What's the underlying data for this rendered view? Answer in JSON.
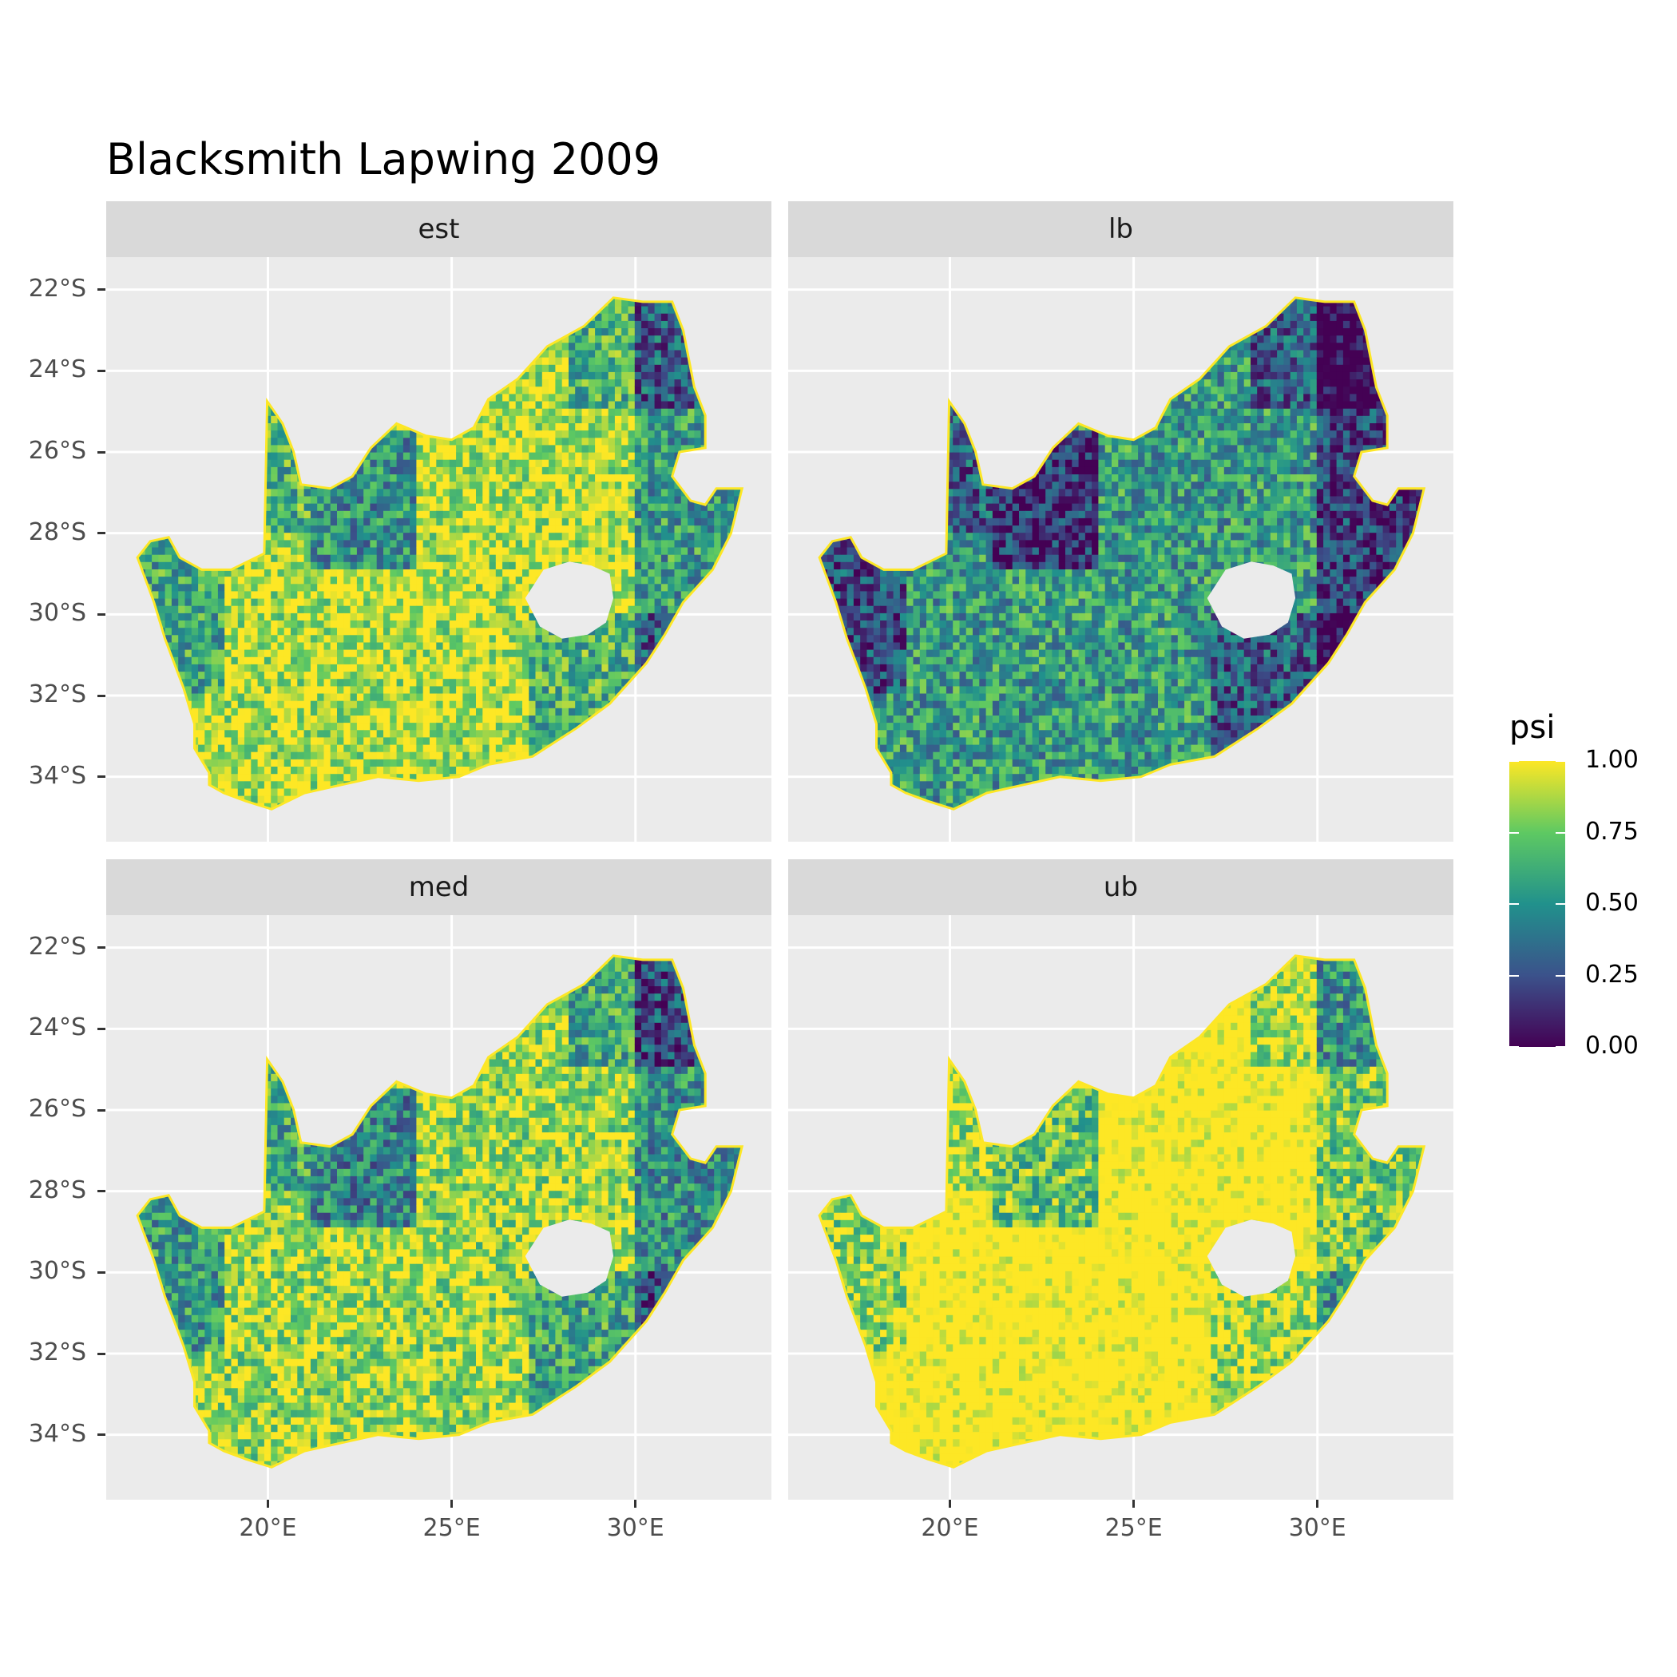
{
  "title": "Blacksmith Lapwing 2009",
  "panels": [
    "est",
    "lb",
    "med",
    "ub"
  ],
  "y_axis_labels": [
    "22°S",
    "24°S",
    "26°S",
    "28°S",
    "30°S",
    "32°S",
    "34°S"
  ],
  "x_axis_labels": [
    "20°E",
    "25°E",
    "30°E"
  ],
  "legend": {
    "title": "psi",
    "labels": [
      "1.00",
      "0.75",
      "0.50",
      "0.25",
      "0.00"
    ],
    "colors": [
      "#fde725",
      "#5ec962",
      "#21918c",
      "#3b528b",
      "#440154"
    ]
  },
  "chart_data": {
    "type": "heatmap",
    "title": "Blacksmith Lapwing 2009",
    "facets": [
      "est",
      "lb",
      "med",
      "ub"
    ],
    "fill": "psi",
    "fill_range": [
      0,
      1
    ],
    "xlim": [
      15.6,
      33.7
    ],
    "ylim": [
      -35.6,
      -21.2
    ],
    "x_ticks": [
      20,
      25,
      30
    ],
    "y_ticks": [
      -22,
      -24,
      -26,
      -28,
      -30,
      -32,
      -34
    ],
    "colorscale": "viridis"
  }
}
